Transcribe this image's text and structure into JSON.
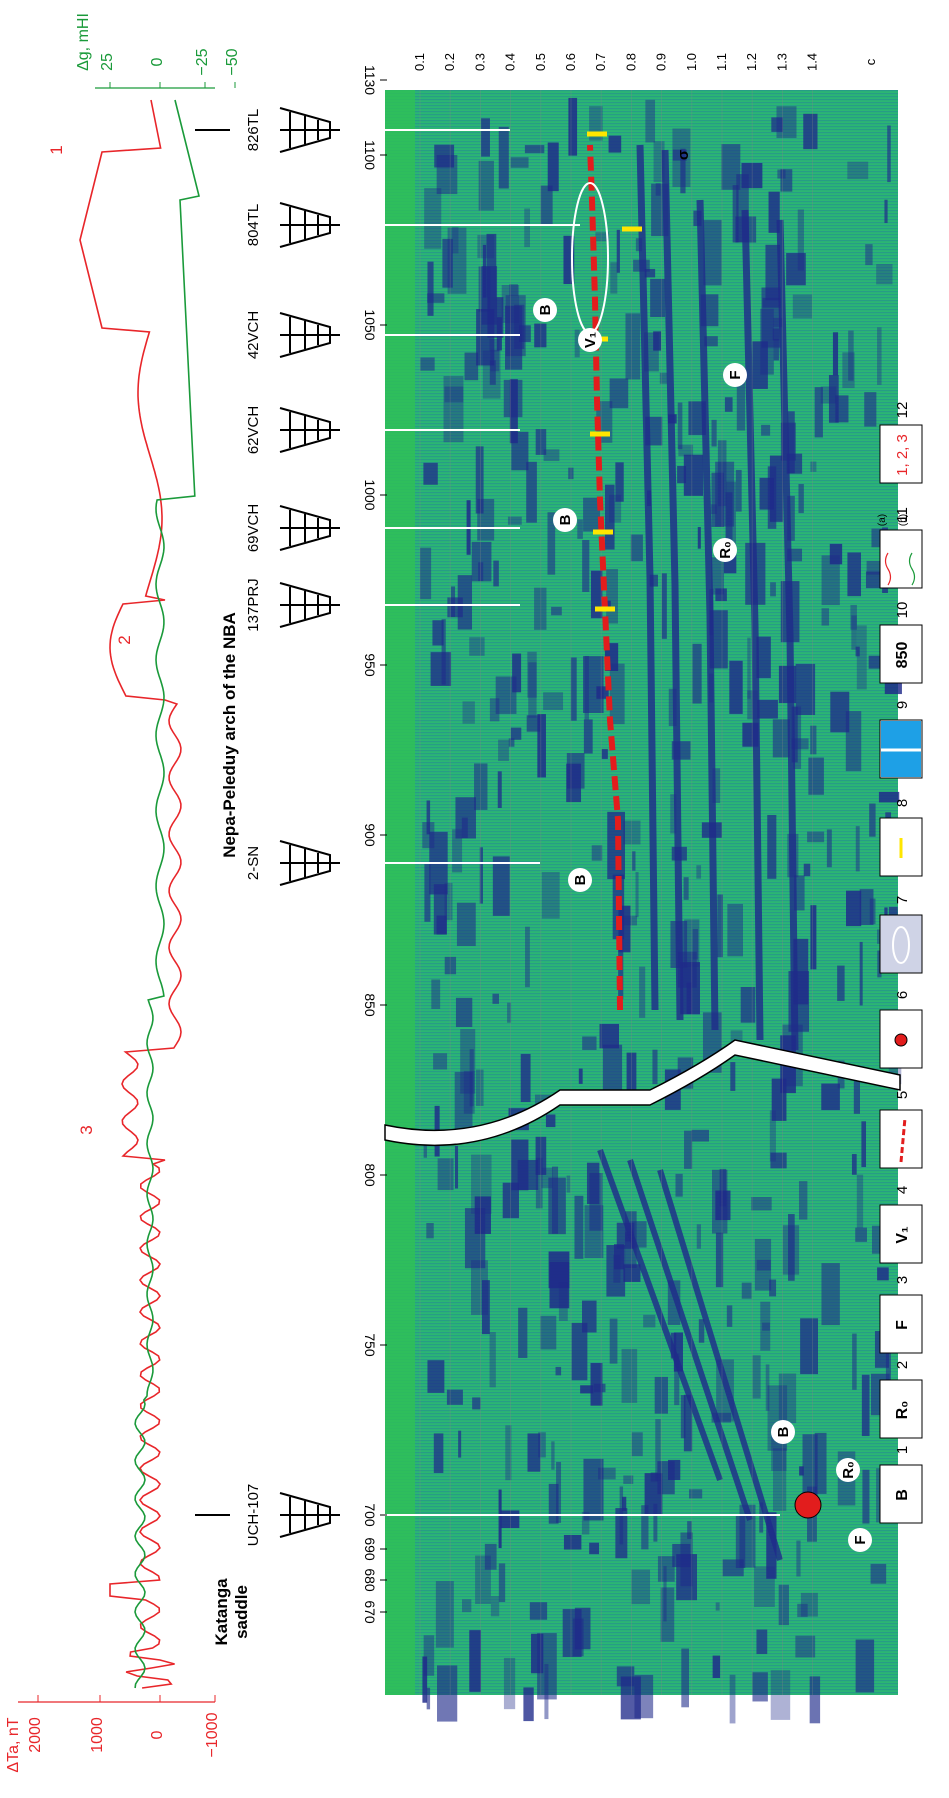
{
  "colors": {
    "magnetic": "#e8262a",
    "gravity": "#1a9a3a",
    "seismic_bg": "#2bb673",
    "seismic_dark": "#1f2a8a",
    "horizon": "#e21d1d",
    "marker": "#ffe600",
    "legend_blue": "#1ea0e6",
    "legend_ellipse_fill": "#cfd3e6"
  },
  "axes": {
    "magnetic_label": "ΔTa, nT",
    "magnetic_ticks": [
      "2000",
      "1000",
      "0",
      "−1000"
    ],
    "gravity_label": "Δg, mHI",
    "gravity_ticks": [
      "25",
      "0",
      "−25",
      "−50"
    ],
    "time_unit": "c",
    "time_ticks": [
      "0.1",
      "0.2",
      "0.3",
      "0.4",
      "0.5",
      "0.6",
      "0.7",
      "0.8",
      "0.9",
      "1.0",
      "1.1",
      "1.2",
      "1.3",
      "1.4"
    ],
    "distance_ticks": [
      "670",
      "680",
      "690",
      "700",
      "750",
      "800",
      "850",
      "900",
      "950",
      "1000",
      "1050",
      "1100",
      "1130"
    ]
  },
  "curve_labels": [
    "1",
    "2",
    "3"
  ],
  "regions": {
    "left": "Katanga\nsaddle",
    "right": "Nepa-Peleduy arch of the NBA"
  },
  "wells": [
    "UCH-107",
    "2-SN",
    "137PRJ",
    "69VCH",
    "62VCH",
    "42VCH",
    "804TL",
    "826TL"
  ],
  "seismic_labels": [
    "B",
    "B",
    "B",
    "B",
    "R₀",
    "R₀",
    "F",
    "F",
    "V₁",
    "σ"
  ],
  "legend": [
    {
      "num": "1",
      "symbol": "B"
    },
    {
      "num": "2",
      "symbol": "R₀"
    },
    {
      "num": "3",
      "symbol": "F"
    },
    {
      "num": "4",
      "symbol": "V₁"
    },
    {
      "num": "5",
      "symbol": "dashed-red-line"
    },
    {
      "num": "6",
      "symbol": "red-dot"
    },
    {
      "num": "7",
      "symbol": "ellipse"
    },
    {
      "num": "8",
      "symbol": "yellow-bar"
    },
    {
      "num": "9",
      "symbol": "blue-bar"
    },
    {
      "num": "10",
      "symbol": "850"
    },
    {
      "num": "11",
      "symbol": "curves",
      "sub_a": "(a)",
      "sub_b": "(b)"
    },
    {
      "num": "12",
      "symbol": "1, 2, 3"
    }
  ]
}
